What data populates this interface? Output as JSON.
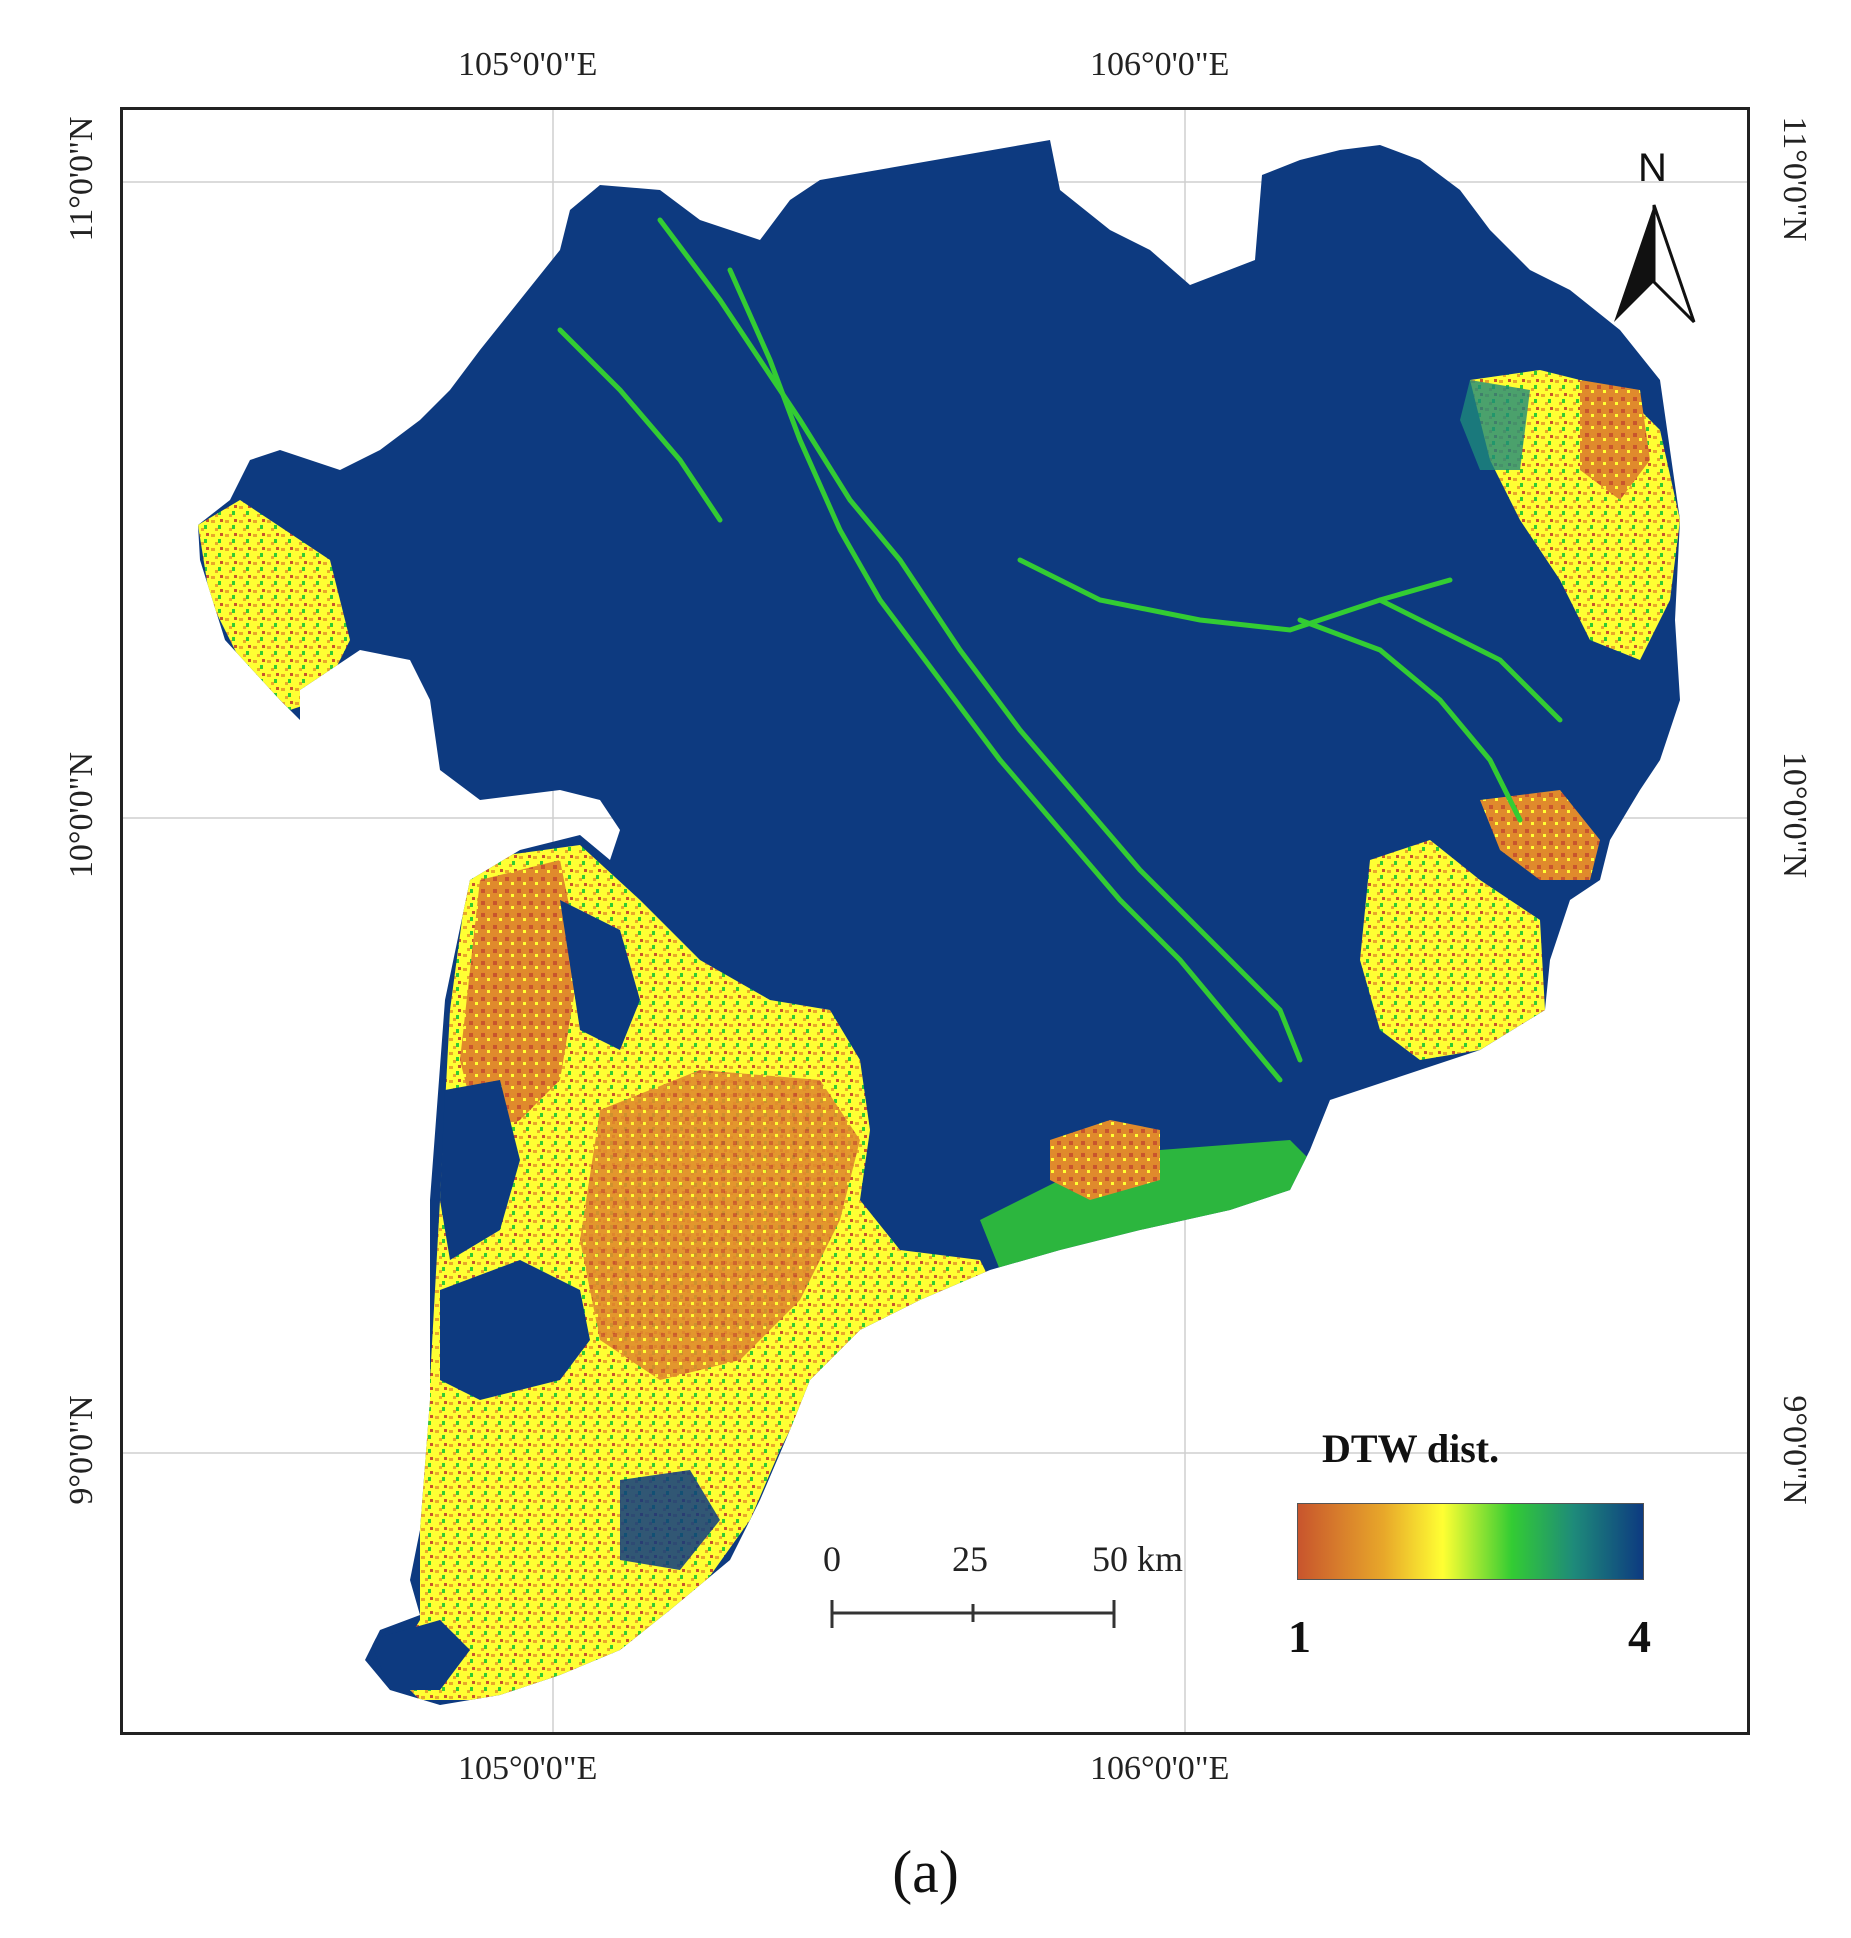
{
  "map": {
    "graticule": {
      "lon_labels": [
        "105°0'0\"E",
        "106°0'0\"E"
      ],
      "lat_labels": [
        "11°0'0\"N",
        "10°0'0\"N",
        "9°0'0\"N"
      ]
    },
    "north_arrow": {
      "label": "N",
      "icon": "north-arrow-icon"
    },
    "scale_bar": {
      "ticks": [
        "0",
        "25",
        "50 km"
      ]
    },
    "legend": {
      "title": "DTW dist.",
      "min_label": "1",
      "max_label": "4",
      "colors": [
        "#c8552d",
        "#e8a82a",
        "#ffff33",
        "#33cc33",
        "#1e8a7a",
        "#0d3a80"
      ]
    },
    "colors": {
      "background_class": "#0d3a80",
      "high_class": "#c8552d",
      "mid_class": "#ffff33",
      "low_class": "#33cc33"
    },
    "caption": "(a)"
  }
}
